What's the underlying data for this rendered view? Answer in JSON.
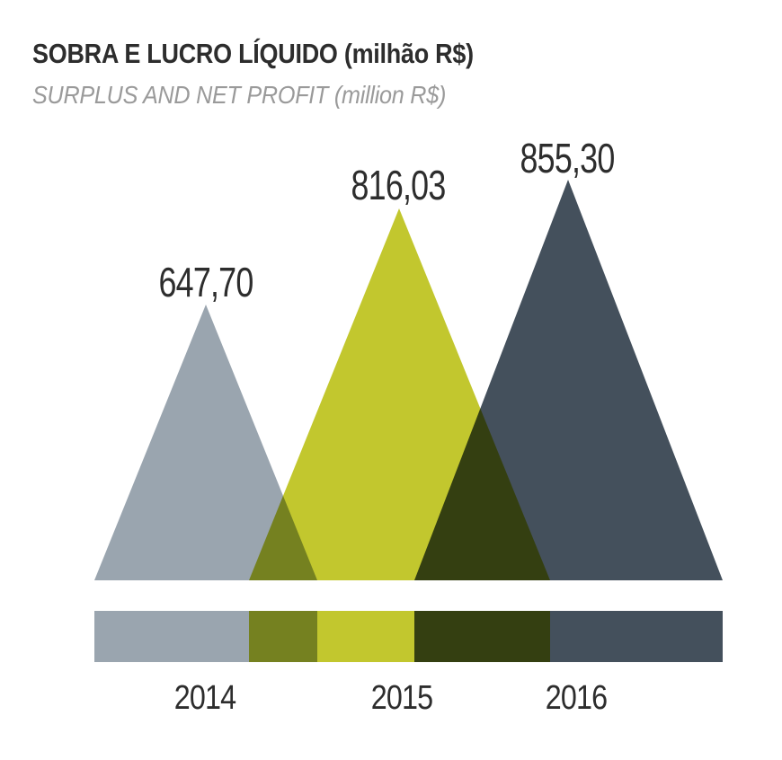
{
  "chart_data": {
    "type": "area",
    "variant": "overlapping-triangle-peak-infographic",
    "title": "SOBRA E LUCRO LÍQUIDO (milhão R$)",
    "subtitle": "SURPLUS AND NET PROFIT (million R$)",
    "unit": "milhão R$ / million R$",
    "categories": [
      "2014",
      "2015",
      "2016"
    ],
    "values": [
      647.7,
      816.03,
      855.3
    ],
    "value_labels": [
      "647,70",
      "816,03",
      "855,30"
    ],
    "series_colors": [
      "#9AA5AF",
      "#C2C72E",
      "#44505C"
    ],
    "overlap_colors": {
      "overlap_2014_2015": "#75811F",
      "overlap_2015_2016": "#343E11"
    },
    "blend_mode": "multiply",
    "baseline_bar": true,
    "legend": "none",
    "grid": false,
    "axes_hidden": true,
    "text_color": "#2D2D2D",
    "subtitle_color": "#9A9A9A",
    "background": "#FFFFFF"
  }
}
